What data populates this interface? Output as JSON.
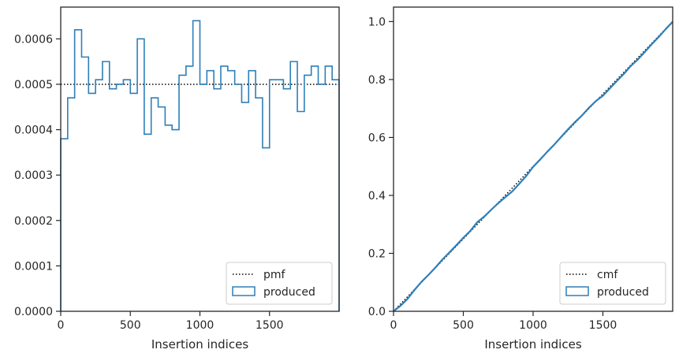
{
  "colors": {
    "series": "#2e7fb8",
    "reference": "#000000",
    "frame": "#262626",
    "background": "#ffffff"
  },
  "chart_data": [
    {
      "type": "step",
      "xlabel": "Insertion indices",
      "ylabel": "",
      "xlim": [
        0,
        2000
      ],
      "ylim": [
        0,
        0.00067
      ],
      "xticks": [
        0,
        500,
        1000,
        1500
      ],
      "xtick_labels": [
        "0",
        "500",
        "1000",
        "1500"
      ],
      "yticks": [
        0,
        0.0001,
        0.0002,
        0.0003,
        0.0004,
        0.0005,
        0.0006
      ],
      "ytick_labels": [
        "0.0000",
        "0.0001",
        "0.0002",
        "0.0003",
        "0.0004",
        "0.0005",
        "0.0006"
      ],
      "grid": false,
      "legend": {
        "placement": "lower-right",
        "entries": [
          "pmf",
          "produced"
        ]
      },
      "reference_line": {
        "name": "pmf",
        "style": "dotted",
        "y": 0.0005
      },
      "series": [
        {
          "name": "produced",
          "style": "step",
          "bin_width": 50,
          "bin_starts": [
            0,
            50,
            100,
            150,
            200,
            250,
            300,
            350,
            400,
            450,
            500,
            550,
            600,
            650,
            700,
            750,
            800,
            850,
            900,
            950,
            1000,
            1050,
            1100,
            1150,
            1200,
            1250,
            1300,
            1350,
            1400,
            1450,
            1500,
            1550,
            1600,
            1650,
            1700,
            1750,
            1800,
            1850,
            1900,
            1950
          ],
          "values": [
            0.00038,
            0.00047,
            0.00062,
            0.00056,
            0.00048,
            0.00051,
            0.00055,
            0.00049,
            0.0005,
            0.00051,
            0.00048,
            0.0006,
            0.00039,
            0.00047,
            0.00045,
            0.00041,
            0.0004,
            0.00052,
            0.00054,
            0.00064,
            0.0005,
            0.00053,
            0.00049,
            0.00054,
            0.00053,
            0.0005,
            0.00046,
            0.00053,
            0.00047,
            0.00036,
            0.00051,
            0.00051,
            0.00049,
            0.00055,
            0.00044,
            0.00052,
            0.00054,
            0.0005,
            0.00054,
            0.00051
          ]
        }
      ]
    },
    {
      "type": "line",
      "xlabel": "Insertion indices",
      "ylabel": "",
      "xlim": [
        0,
        2000
      ],
      "ylim": [
        0,
        1.05
      ],
      "xticks": [
        0,
        500,
        1000,
        1500
      ],
      "xtick_labels": [
        "0",
        "500",
        "1000",
        "1500"
      ],
      "yticks": [
        0,
        0.2,
        0.4,
        0.6,
        0.8,
        1.0
      ],
      "ytick_labels": [
        "0.0",
        "0.2",
        "0.4",
        "0.6",
        "0.8",
        "1.0"
      ],
      "grid": false,
      "legend": {
        "placement": "lower-right",
        "entries": [
          "cmf",
          "produced"
        ]
      },
      "reference_line": {
        "name": "cmf",
        "style": "dotted",
        "x": [
          0,
          2000
        ],
        "y": [
          0,
          1.0
        ]
      },
      "series": [
        {
          "name": "produced",
          "x": [
            0,
            50,
            100,
            150,
            200,
            250,
            300,
            350,
            400,
            450,
            500,
            550,
            600,
            650,
            700,
            750,
            800,
            850,
            900,
            950,
            1000,
            1050,
            1100,
            1150,
            1200,
            1250,
            1300,
            1350,
            1400,
            1450,
            1500,
            1550,
            1600,
            1650,
            1700,
            1750,
            1800,
            1850,
            1900,
            1950,
            2000
          ],
          "y": [
            0,
            0.019,
            0.0425,
            0.0735,
            0.1015,
            0.1255,
            0.151,
            0.1785,
            0.203,
            0.228,
            0.2535,
            0.2775,
            0.3075,
            0.327,
            0.3505,
            0.373,
            0.3935,
            0.4135,
            0.4395,
            0.4665,
            0.4985,
            0.5235,
            0.55,
            0.5745,
            0.6015,
            0.628,
            0.653,
            0.676,
            0.7025,
            0.726,
            0.744,
            0.7695,
            0.795,
            0.8195,
            0.847,
            0.869,
            0.895,
            0.922,
            0.947,
            0.974,
            0.9995
          ]
        }
      ]
    }
  ]
}
